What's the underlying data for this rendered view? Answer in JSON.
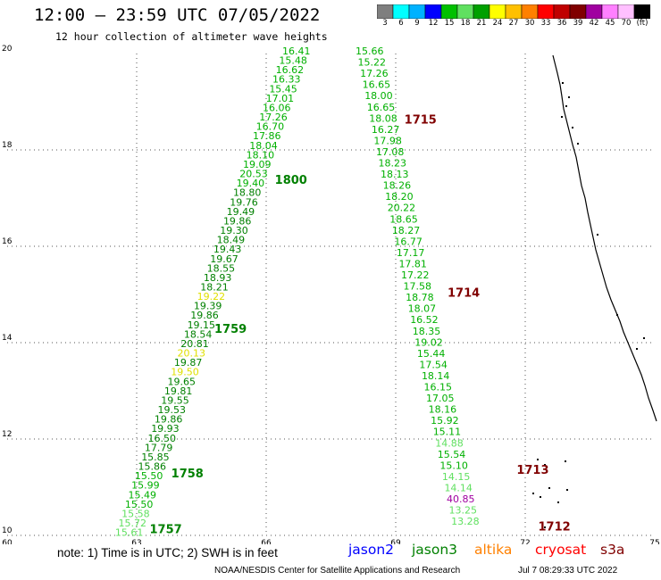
{
  "title": "12:00 – 23:59 UTC 07/05/2022",
  "subtitle": "12 hour collection of altimeter wave heights",
  "color_scale": {
    "labels": [
      "3",
      "6",
      "9",
      "12",
      "15",
      "18",
      "21",
      "24",
      "27",
      "30",
      "33",
      "36",
      "39",
      "42",
      "45",
      "70",
      "(ft)"
    ],
    "colors": [
      "#7f7f7f",
      "#00ffff",
      "#00b2ff",
      "#0000ff",
      "#00c000",
      "#60e060",
      "#00a000",
      "#ffff00",
      "#ffc000",
      "#ff8000",
      "#ff0000",
      "#c00000",
      "#800000",
      "#a000a0",
      "#ff80ff",
      "#ffc0ff",
      "#000000"
    ]
  },
  "axes": {
    "lon_ticks": [
      "60",
      "63",
      "66",
      "69",
      "72",
      "75"
    ],
    "lat_ticks": [
      "10",
      "12",
      "14",
      "16",
      "18",
      "20"
    ]
  },
  "pass_labels": [
    {
      "text": "1715",
      "color": "#800000",
      "lon": 69.2,
      "lat": 18.55
    },
    {
      "text": "1714",
      "color": "#800000",
      "lon": 70.2,
      "lat": 14.95
    },
    {
      "text": "1713",
      "color": "#800000",
      "lon": 71.8,
      "lat": 11.28
    },
    {
      "text": "1712",
      "color": "#800000",
      "lon": 72.3,
      "lat": 10.1
    },
    {
      "text": "1800",
      "color": "#008000",
      "lon": 66.2,
      "lat": 17.3
    },
    {
      "text": "1759",
      "color": "#008000",
      "lon": 64.8,
      "lat": 14.2
    },
    {
      "text": "1758",
      "color": "#008000",
      "lon": 63.8,
      "lat": 11.2
    },
    {
      "text": "1757",
      "color": "#008000",
      "lon": 63.3,
      "lat": 10.05
    }
  ],
  "track_east": {
    "values": [
      "15.66",
      "15.22",
      "17.26",
      "16.65",
      "18.00",
      "16.65",
      "18.08",
      "16.27",
      "17.98",
      "17.08",
      "18.23",
      "18.13",
      "18.26",
      "18.20",
      "20.22",
      "18.65",
      "18.27",
      "16.77",
      "17.17",
      "17.81",
      "17.22",
      "17.58",
      "18.78",
      "18.07",
      "16.52",
      "18.35",
      "19.02",
      "15.44",
      "17.54",
      "18.14",
      "16.15",
      "17.05",
      "18.16",
      "15.92",
      "15.11",
      "14.88",
      "15.54",
      "15.10",
      "14.15",
      "14.14",
      "40.85",
      "13.25",
      "13.28"
    ],
    "colors": [
      "#00b000",
      "#00b000",
      "#00b000",
      "#00b000",
      "#00b000",
      "#00b000",
      "#00b000",
      "#00b000",
      "#00b000",
      "#00b000",
      "#00b000",
      "#00b000",
      "#00b000",
      "#00b000",
      "#00b000",
      "#00b000",
      "#00b000",
      "#00b000",
      "#00b000",
      "#00b000",
      "#00b000",
      "#00b000",
      "#00b000",
      "#00b000",
      "#00b000",
      "#00b000",
      "#00b000",
      "#00b000",
      "#00b000",
      "#00b000",
      "#00b000",
      "#00b000",
      "#00b000",
      "#00b000",
      "#00b000",
      "#60e060",
      "#00b000",
      "#00b000",
      "#60e060",
      "#60e060",
      "#a000a0",
      "#60e060",
      "#60e060"
    ]
  },
  "track_west": {
    "values": [
      "16.41",
      "15.48",
      "16.62",
      "16.33",
      "15.45",
      "17.01",
      "16.06",
      "17.26",
      "16.70",
      "17.86",
      "18.04",
      "18.10",
      "19.09",
      "20.53",
      "19.40",
      "18.80",
      "19.76",
      "19.49",
      "19.86",
      "19.30",
      "18.49",
      "19.43",
      "19.67",
      "18.55",
      "18.93",
      "18.21",
      "19.22",
      "19.39",
      "19.86",
      "19.15",
      "18.54",
      "20.81",
      "20.13",
      "19.87",
      "19.50",
      "19.65",
      "19.81",
      "19.55",
      "19.53",
      "19.86",
      "19.93",
      "16.50",
      "17.79",
      "15.85",
      "15.86",
      "15.50",
      "15.99",
      "15.49",
      "15.50",
      "15.58",
      "15.72",
      "15.61"
    ],
    "colors": [
      "#00b000",
      "#00b000",
      "#00b000",
      "#00b000",
      "#00b000",
      "#00b000",
      "#00b000",
      "#00b000",
      "#00b000",
      "#00b000",
      "#00b000",
      "#00b000",
      "#00b000",
      "#00b000",
      "#00b000",
      "#008000",
      "#008000",
      "#008000",
      "#008000",
      "#008000",
      "#008000",
      "#008000",
      "#008000",
      "#008000",
      "#008000",
      "#008000",
      "#e0e000",
      "#008000",
      "#008000",
      "#008000",
      "#008000",
      "#008000",
      "#e0e000",
      "#008000",
      "#e0e000",
      "#008000",
      "#008000",
      "#008000",
      "#008000",
      "#008000",
      "#008000",
      "#008000",
      "#008000",
      "#008000",
      "#008000",
      "#00b000",
      "#00b000",
      "#00b000",
      "#00b000",
      "#60e060",
      "#60e060",
      "#60e060"
    ]
  },
  "note": "note: 1) Time is in UTC; 2) SWH is in feet",
  "satellites": [
    {
      "name": "jason2",
      "color": "#0000ff"
    },
    {
      "name": "jason3",
      "color": "#008000"
    },
    {
      "name": "altika",
      "color": "#ff8000"
    },
    {
      "name": "cryosat",
      "color": "#ff0000"
    },
    {
      "name": "s3a",
      "color": "#800000"
    }
  ],
  "credit": "NOAA/NESDIS Center for Satellite Applications and Research",
  "timestamp": "Jul  7 08:29:33 UTC 2022"
}
